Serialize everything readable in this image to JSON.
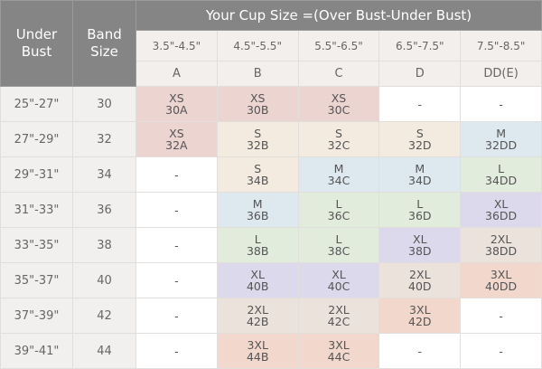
{
  "header": {
    "under_bust": "Under\nBust",
    "band_size": "Band\nSize",
    "cup_title": "Your Cup Size =(Over Bust-Under Bust)",
    "ranges": [
      "3.5\"-4.5\"",
      "4.5\"-5.5\"",
      "5.5\"-6.5\"",
      "6.5\"-7.5\"",
      "7.5\"-8.5\""
    ],
    "cups": [
      "A",
      "B",
      "C",
      "D",
      "DD(E)"
    ]
  },
  "size_colors": {
    "XS": "#ecd4d1",
    "S": "#f3ebdf",
    "M": "#dde8ef",
    "L": "#e1ecdd",
    "XL": "#dcd9ec",
    "2XL": "#ebe2dc",
    "3XL": "#f1d7cc",
    "-": "#ffffff"
  },
  "rows": [
    {
      "under": "25\"-27\"",
      "band": "30",
      "cells": [
        [
          "XS",
          "30A"
        ],
        [
          "XS",
          "30B"
        ],
        [
          "XS",
          "30C"
        ],
        [
          "-",
          ""
        ],
        [
          "-",
          ""
        ]
      ]
    },
    {
      "under": "27\"-29\"",
      "band": "32",
      "cells": [
        [
          "XS",
          "32A"
        ],
        [
          "S",
          "32B"
        ],
        [
          "S",
          "32C"
        ],
        [
          "S",
          "32D"
        ],
        [
          "M",
          "32DD"
        ]
      ]
    },
    {
      "under": "29\"-31\"",
      "band": "34",
      "cells": [
        [
          "-",
          ""
        ],
        [
          "S",
          "34B"
        ],
        [
          "M",
          "34C"
        ],
        [
          "M",
          "34D"
        ],
        [
          "L",
          "34DD"
        ]
      ]
    },
    {
      "under": "31\"-33\"",
      "band": "36",
      "cells": [
        [
          "-",
          ""
        ],
        [
          "M",
          "36B"
        ],
        [
          "L",
          "36C"
        ],
        [
          "L",
          "36D"
        ],
        [
          "XL",
          "36DD"
        ]
      ]
    },
    {
      "under": "33\"-35\"",
      "band": "38",
      "cells": [
        [
          "-",
          ""
        ],
        [
          "L",
          "38B"
        ],
        [
          "L",
          "38C"
        ],
        [
          "XL",
          "38D"
        ],
        [
          "2XL",
          "38DD"
        ]
      ]
    },
    {
      "under": "35\"-37\"",
      "band": "40",
      "cells": [
        [
          "-",
          ""
        ],
        [
          "XL",
          "40B"
        ],
        [
          "XL",
          "40C"
        ],
        [
          "2XL",
          "40D"
        ],
        [
          "3XL",
          "40DD"
        ]
      ]
    },
    {
      "under": "37\"-39\"",
      "band": "42",
      "cells": [
        [
          "-",
          ""
        ],
        [
          "2XL",
          "42B"
        ],
        [
          "2XL",
          "42C"
        ],
        [
          "3XL",
          "42D"
        ],
        [
          "-",
          ""
        ]
      ]
    },
    {
      "under": "39\"-41\"",
      "band": "44",
      "cells": [
        [
          "-",
          ""
        ],
        [
          "3XL",
          "44B"
        ],
        [
          "3XL",
          "44C"
        ],
        [
          "-",
          ""
        ],
        [
          "-",
          ""
        ]
      ]
    }
  ]
}
